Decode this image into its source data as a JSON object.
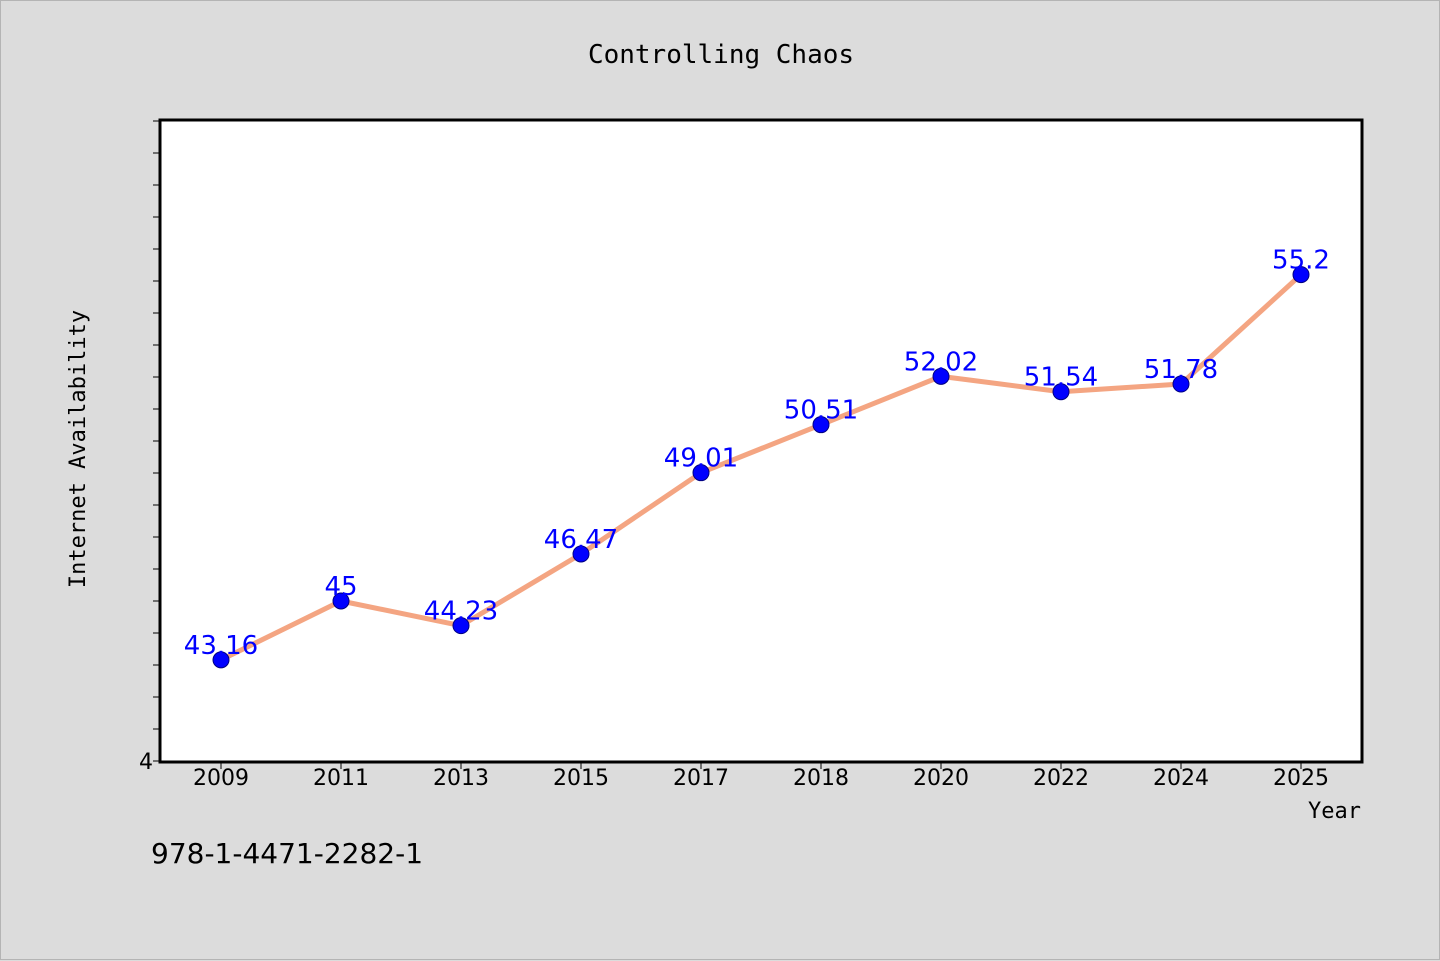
{
  "chart_data": {
    "type": "line",
    "title": "Controlling Chaos",
    "xlabel": "Year",
    "ylabel": "Internet Availability",
    "categories": [
      "2009",
      "2011",
      "2013",
      "2015",
      "2017",
      "2018",
      "2020",
      "2022",
      "2024",
      "2025"
    ],
    "series": [
      {
        "values": [
          43.16,
          45,
          44.23,
          46.47,
          49.01,
          50.51,
          52.02,
          51.54,
          51.78,
          55.2
        ],
        "line_color": "#f4a582",
        "marker_color": "#0000ff"
      }
    ],
    "data_labels": [
      "43.16",
      "45",
      "44.23",
      "46.47",
      "49.01",
      "50.51",
      "52.02",
      "51.54",
      "51.78",
      "55.2"
    ],
    "ylim": [
      40,
      60
    ],
    "y_tick_labels": [
      "4"
    ],
    "grid": false
  },
  "footer": {
    "isbn": "978-1-4471-2282-1"
  }
}
